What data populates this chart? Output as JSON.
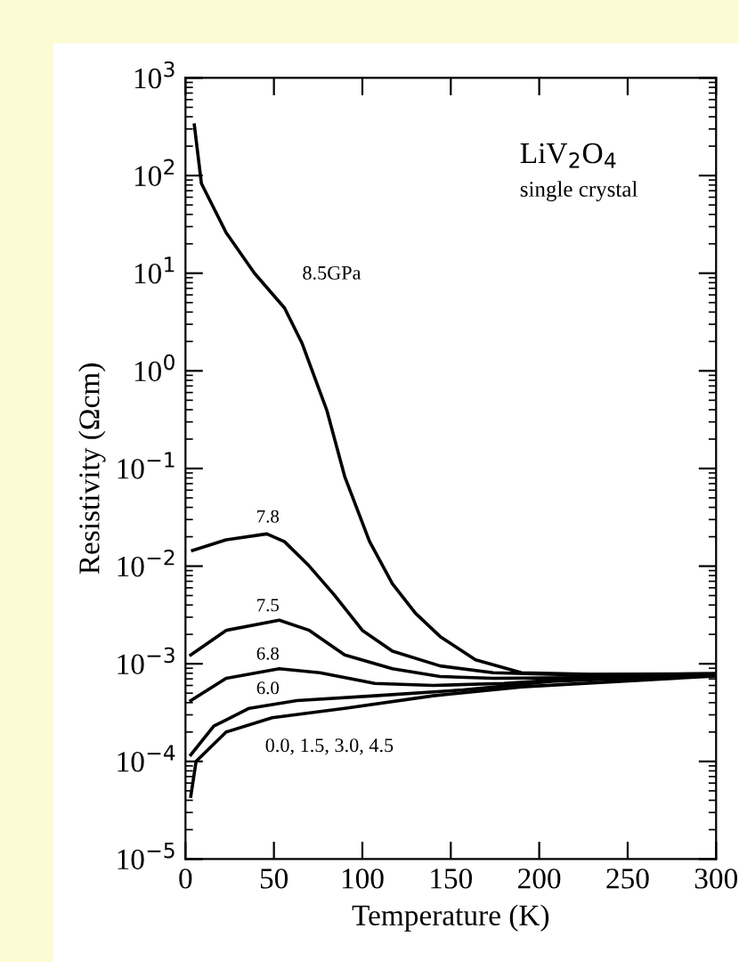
{
  "chart_data": {
    "type": "line",
    "xlabel": "Temperature (K)",
    "ylabel": "Resistivity (Ωcm)",
    "annotations": [
      "LiV$_{2}$O$_{4}$",
      "single crystal"
    ],
    "log": "y",
    "xlim": [
      0,
      300
    ],
    "ylim": [
      1e-05,
      1000
    ],
    "xticks": [
      0,
      50,
      100,
      150,
      200,
      250,
      300
    ],
    "yticks": [
      {
        "value": 1e-05,
        "label": "10$^{−5}$"
      },
      {
        "value": 0.0001,
        "label": "10$^{−4}$"
      },
      {
        "value": 0.001,
        "label": "10$^{−3}$"
      },
      {
        "value": 0.01,
        "label": "10$^{−2}$"
      },
      {
        "value": 0.1,
        "label": "10$^{−1}$"
      },
      {
        "value": 1,
        "label": "10$^{0}$"
      },
      {
        "value": 10,
        "label": "10$^{1}$"
      },
      {
        "value": 100,
        "label": "10$^{2}$"
      },
      {
        "value": 1000,
        "label": "10$^{3}$"
      }
    ],
    "grid": false,
    "legend": false,
    "marker": "none",
    "line_style": "solid",
    "series": [
      {
        "name": "8.5GPa",
        "color": "#000000",
        "x": [
          5,
          9,
          23,
          39,
          56,
          66,
          80,
          90,
          104,
          117,
          130,
          144,
          164,
          190,
          230,
          300
        ],
        "values": [
          330,
          83,
          26,
          10,
          4.4,
          1.9,
          0.39,
          0.083,
          0.018,
          0.0066,
          0.0033,
          0.0019,
          0.0011,
          0.00081,
          0.00078,
          0.00079
        ]
      },
      {
        "name": "7.8",
        "color": "#000000",
        "x": [
          4,
          23,
          46,
          56,
          70,
          84,
          100,
          117,
          144,
          174,
          220,
          300
        ],
        "values": [
          0.0145,
          0.0186,
          0.0214,
          0.0178,
          0.01,
          0.0051,
          0.0022,
          0.00135,
          0.00095,
          0.00081,
          0.00077,
          0.00079
        ]
      },
      {
        "name": "7.5",
        "color": "#000000",
        "x": [
          3,
          23,
          53,
          70,
          90,
          117,
          144,
          174,
          220,
          300
        ],
        "values": [
          0.00123,
          0.0022,
          0.0028,
          0.0022,
          0.00123,
          0.00089,
          0.00074,
          0.00071,
          0.00072,
          0.00077
        ]
      },
      {
        "name": "6.8",
        "color": "#000000",
        "x": [
          3,
          23,
          53,
          76,
          107,
          140,
          180,
          224,
          300
        ],
        "values": [
          0.00042,
          0.00071,
          0.00089,
          0.00081,
          0.00063,
          0.0006,
          0.00063,
          0.00071,
          0.00077
        ]
      },
      {
        "name": "6.0",
        "color": "#000000",
        "x": [
          3,
          16,
          36,
          63,
          107,
          157,
          207,
          300
        ],
        "values": [
          0.000117,
          0.00023,
          0.00035,
          0.00042,
          0.00047,
          0.00054,
          0.00066,
          0.00077
        ]
      },
      {
        "name": "0.0, 1.5, 3.0, 4.5",
        "color": "#000000",
        "x": [
          3,
          6,
          23,
          49,
          90,
          140,
          190,
          300
        ],
        "values": [
          4.4e-05,
          0.0001,
          0.0002,
          0.00028,
          0.00035,
          0.00047,
          0.00058,
          0.00075
        ]
      }
    ]
  }
}
